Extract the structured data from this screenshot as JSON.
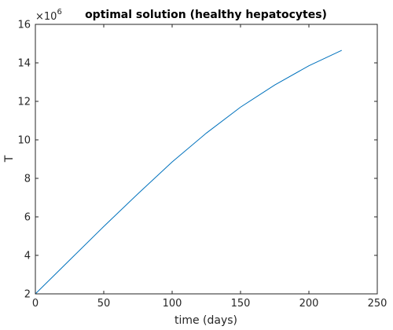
{
  "colors": {
    "background": "#ffffff",
    "axes": "#262626",
    "line": "#0072bd"
  },
  "chart_data": {
    "type": "line",
    "title": "optimal solution (healthy hepatocytes)",
    "xlabel": "time (days)",
    "ylabel": "T",
    "y_scale_text": "×10",
    "y_scale_exponent": "6",
    "xlim": [
      0,
      250
    ],
    "ylim": [
      2,
      16
    ],
    "x_ticks": [
      0,
      50,
      100,
      150,
      200,
      250
    ],
    "y_ticks": [
      2,
      4,
      6,
      8,
      10,
      12,
      14,
      16
    ],
    "x_tick_labels": [
      "0",
      "50",
      "100",
      "150",
      "200",
      "250"
    ],
    "y_tick_labels": [
      "2",
      "4",
      "6",
      "8",
      "10",
      "12",
      "14",
      "16"
    ],
    "grid": false,
    "series": [
      {
        "x": [
          0,
          25,
          50,
          75,
          100,
          125,
          150,
          175,
          200,
          224
        ],
        "y": [
          2.0,
          3.75,
          5.5,
          7.2,
          8.85,
          10.35,
          11.7,
          12.85,
          13.85,
          14.65
        ]
      }
    ]
  }
}
